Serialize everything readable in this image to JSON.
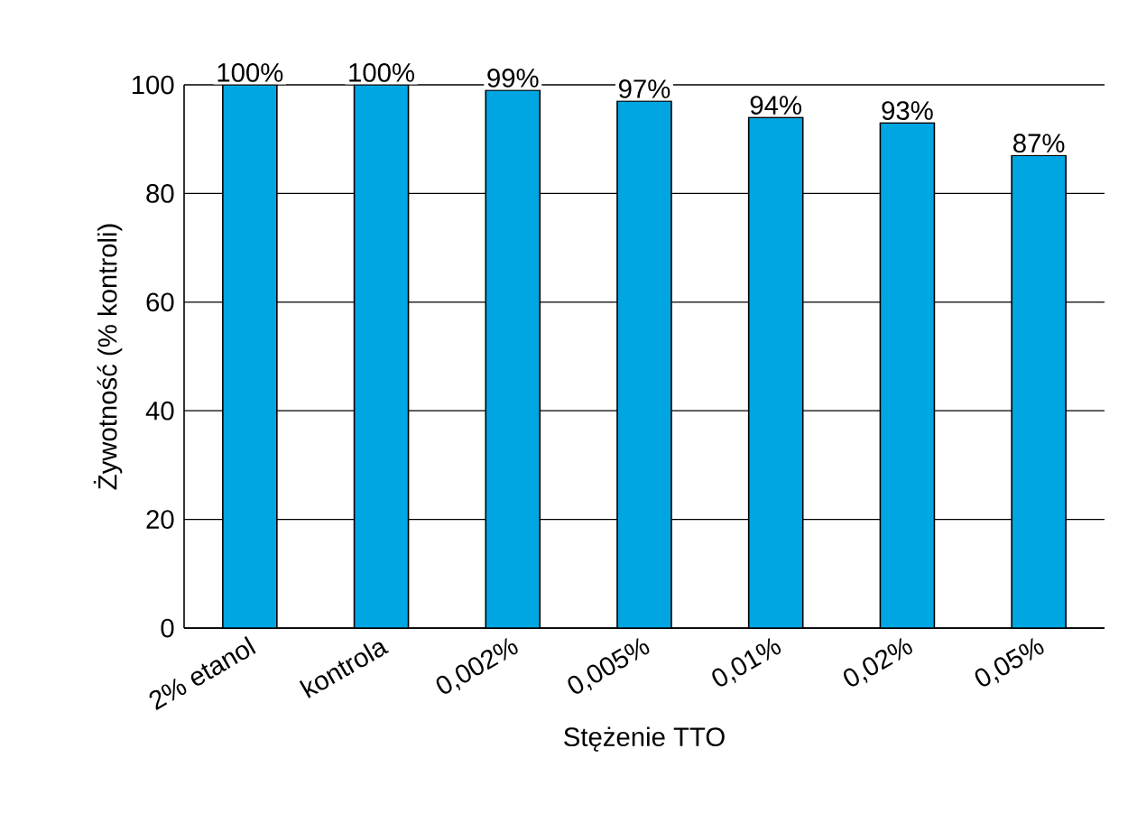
{
  "chart_data": {
    "type": "bar",
    "xlabel": "Stężenie TTO",
    "ylabel": "Żywotność (% kontroli)",
    "categories": [
      "2% etanol",
      "kontrola",
      "0,002%",
      "0,005%",
      "0,01%",
      "0,02%",
      "0,05%"
    ],
    "values": [
      100,
      100,
      99,
      97,
      94,
      93,
      87
    ],
    "value_labels": [
      "100%",
      "100%",
      "99%",
      "97%",
      "94%",
      "93%",
      "87%"
    ],
    "color": "#00a6e2",
    "ylim": [
      0,
      100
    ],
    "yticks": [
      0,
      20,
      40,
      60,
      80,
      100
    ],
    "grid": "y"
  }
}
